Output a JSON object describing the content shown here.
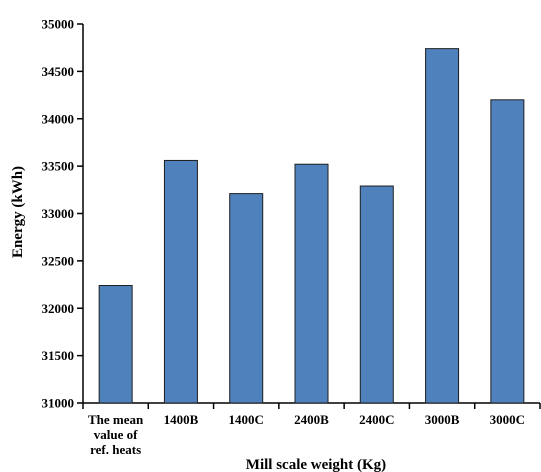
{
  "chart_data": {
    "type": "bar",
    "title": "",
    "xlabel": "Mill scale weight (Kg)",
    "ylabel": "Energy (kWh)",
    "categories": [
      [
        "The mean",
        "value of",
        "ref. heats"
      ],
      [
        "1400B"
      ],
      [
        "1400C"
      ],
      [
        "2400B"
      ],
      [
        "2400C"
      ],
      [
        "3000B"
      ],
      [
        "3000C"
      ]
    ],
    "values": [
      32240,
      33560,
      33210,
      33520,
      33290,
      34740,
      34200
    ],
    "ylim": [
      31000,
      35000
    ],
    "yticks": [
      31000,
      31500,
      32000,
      32500,
      33000,
      33500,
      34000,
      34500,
      35000
    ],
    "grid": false,
    "legend": "none",
    "colors": {
      "bar_fill": "#4f81bd",
      "bar_stroke": "#1f1f1f",
      "axis": "#000000"
    }
  }
}
